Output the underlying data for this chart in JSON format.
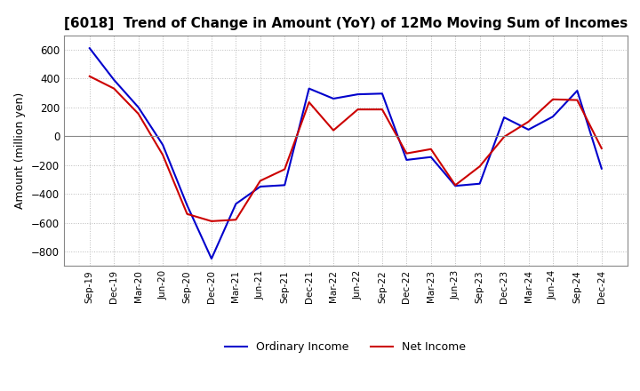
{
  "title": "[6018]  Trend of Change in Amount (YoY) of 12Mo Moving Sum of Incomes",
  "ylabel": "Amount (million yen)",
  "ylim": [
    -900,
    700
  ],
  "yticks": [
    -800,
    -600,
    -400,
    -200,
    0,
    200,
    400,
    600
  ],
  "background_color": "#ffffff",
  "grid_color": "#bbbbbb",
  "ordinary_income_color": "#0000cc",
  "net_income_color": "#cc0000",
  "labels": [
    "Sep-19",
    "Dec-19",
    "Mar-20",
    "Jun-20",
    "Sep-20",
    "Dec-20",
    "Mar-21",
    "Jun-21",
    "Sep-21",
    "Dec-21",
    "Mar-22",
    "Jun-22",
    "Sep-22",
    "Dec-22",
    "Mar-23",
    "Jun-23",
    "Sep-23",
    "Dec-23",
    "Mar-24",
    "Jun-24",
    "Sep-24",
    "Dec-24"
  ],
  "ordinary_income": [
    610,
    390,
    200,
    -60,
    -480,
    -850,
    -470,
    -350,
    -340,
    330,
    260,
    290,
    295,
    -165,
    -145,
    -345,
    -330,
    130,
    45,
    135,
    315,
    -225
  ],
  "net_income": [
    415,
    330,
    155,
    -130,
    -540,
    -590,
    -580,
    -310,
    -230,
    235,
    40,
    185,
    185,
    -120,
    -90,
    -340,
    -210,
    -5,
    100,
    255,
    250,
    -85
  ]
}
